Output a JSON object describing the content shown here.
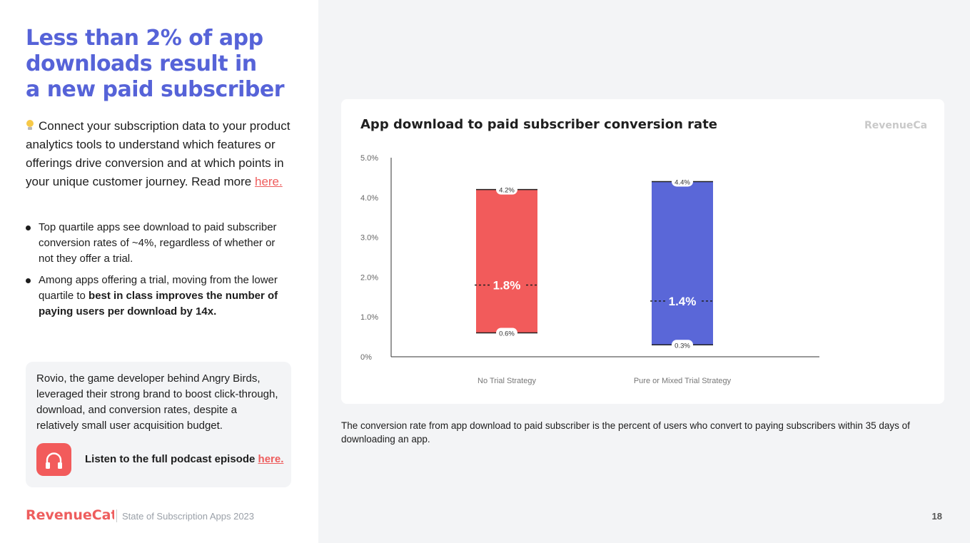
{
  "headline": {
    "lines": [
      "Less than 2% of app",
      "downloads result in",
      "a new paid subscriber"
    ]
  },
  "intro": {
    "icon": "lightbulb-icon",
    "text": "Connect your subscription data to your product analytics tools to understand which features or offerings drive conversion and at which points in your unique customer journey. Read more",
    "link": "here."
  },
  "bullets": [
    {
      "text": "Top quartile apps see download to paid subscriber conversion rates of ~4%, regardless of whether or not they offer a trial."
    },
    {
      "text": "Among apps offering a trial, moving from the lower quartile to",
      "bold": "best in class improves the number of paying users per download by 14x."
    }
  ],
  "card": {
    "text": "Rovio, the game developer behind Angry Birds, leveraged their strong brand to boost click-through, download, and conversion rates, despite a relatively small user acquisition budget.",
    "icon": "headphones-icon",
    "podcast_text": "Listen to the full podcast episode",
    "podcast_link": "here."
  },
  "footer": {
    "brand": "RevenueCat",
    "report": "State of Subscription Apps 2023",
    "page": "18"
  },
  "colors": {
    "accent": "#5663d8",
    "no_trial": "#f25b5b",
    "trial": "#5a67d8",
    "link": "#ee5d5d"
  },
  "chart_card": {
    "brand": "RevenueCat"
  },
  "chart_data": {
    "type": "bar",
    "title": "App download to paid subscriber conversion rate",
    "categories": [
      "No Trial Strategy",
      "Pure or Mixed Trial Strategy"
    ],
    "series": [
      {
        "low": 0.6,
        "high": 4.2,
        "median": 1.8,
        "low_label": "0.6%",
        "high_label": "4.2%",
        "median_label": "1.8%",
        "color": "#f25b5b"
      },
      {
        "low": 0.3,
        "high": 4.4,
        "median": 1.4,
        "low_label": "0.3%",
        "high_label": "4.4%",
        "median_label": "1.4%",
        "color": "#5a67d8"
      }
    ],
    "yticks": [
      0,
      1,
      2,
      3,
      4,
      5
    ],
    "ytick_labels": [
      "0%",
      "1.0%",
      "2.0%",
      "3.0%",
      "4.0%",
      "5.0%"
    ],
    "ylim": [
      0,
      5
    ],
    "grid": false,
    "legend": "none"
  },
  "caption": "The conversion rate from app download to paid subscriber is the percent of users who convert to paying subscribers within 35 days of downloading an app."
}
